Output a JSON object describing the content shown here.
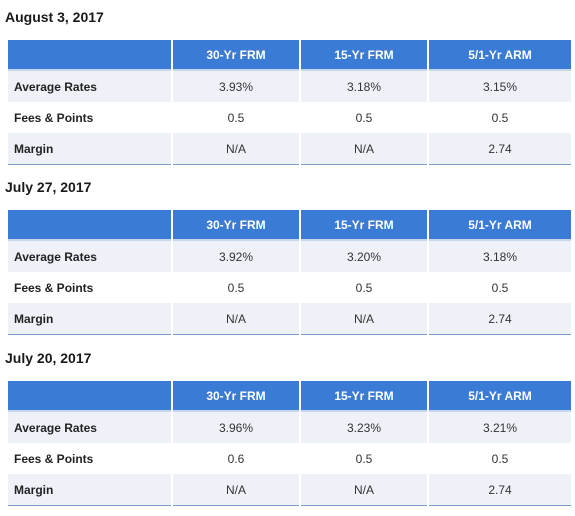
{
  "columns": [
    "",
    "30-Yr FRM",
    "15-Yr FRM",
    "5/1-Yr ARM"
  ],
  "colors": {
    "header_bg": "#3a7bd5",
    "row_shade": "#eef2f8"
  },
  "weeks": [
    {
      "date": "August 3, 2017",
      "rows": [
        {
          "label": "Average Rates",
          "values": [
            "3.93%",
            "3.18%",
            "3.15%"
          ]
        },
        {
          "label": "Fees & Points",
          "values": [
            "0.5",
            "0.5",
            "0.5"
          ]
        },
        {
          "label": "Margin",
          "values": [
            "N/A",
            "N/A",
            "2.74"
          ]
        }
      ]
    },
    {
      "date": "July 27, 2017",
      "rows": [
        {
          "label": "Average Rates",
          "values": [
            "3.92%",
            "3.20%",
            "3.18%"
          ]
        },
        {
          "label": "Fees & Points",
          "values": [
            "0.5",
            "0.5",
            "0.5"
          ]
        },
        {
          "label": "Margin",
          "values": [
            "N/A",
            "N/A",
            "2.74"
          ]
        }
      ]
    },
    {
      "date": "July 20, 2017",
      "rows": [
        {
          "label": "Average Rates",
          "values": [
            "3.96%",
            "3.23%",
            "3.21%"
          ]
        },
        {
          "label": "Fees & Points",
          "values": [
            "0.6",
            "0.5",
            "0.5"
          ]
        },
        {
          "label": "Margin",
          "values": [
            "N/A",
            "N/A",
            "2.74"
          ]
        }
      ]
    }
  ]
}
